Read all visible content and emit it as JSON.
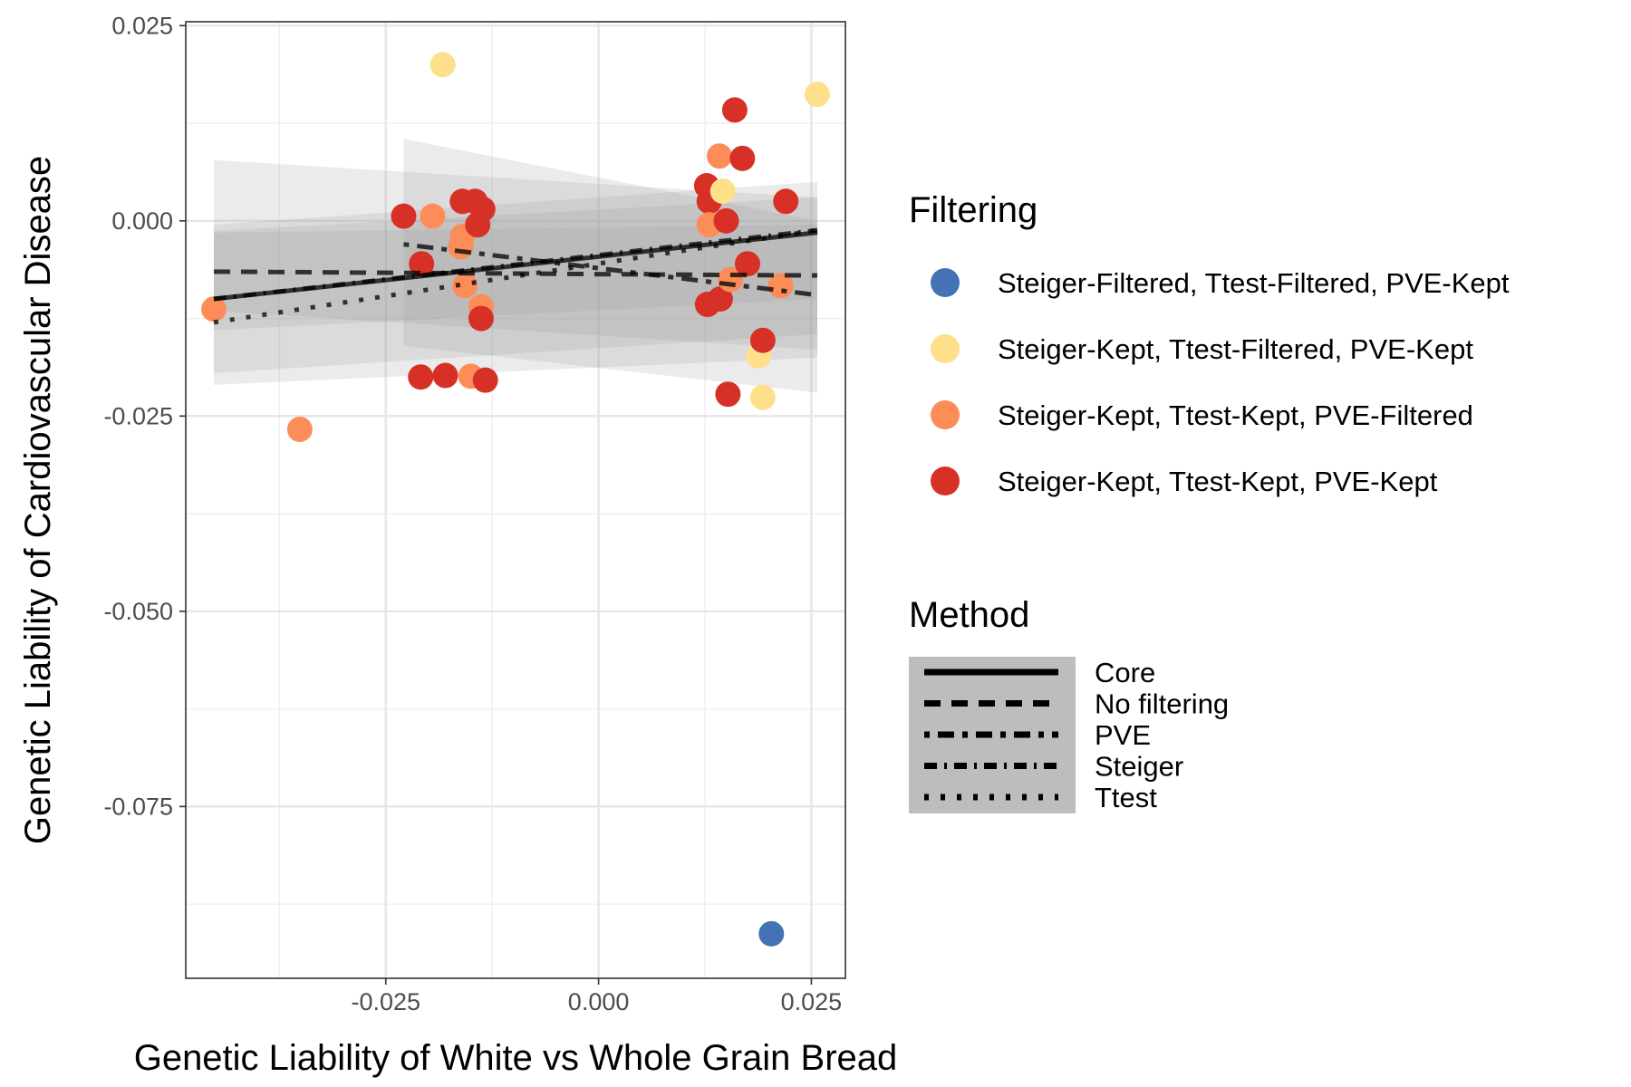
{
  "chart_data": {
    "type": "scatter",
    "xlabel": "Genetic Liability of White vs Whole Grain Bread",
    "ylabel": "Genetic Liability of Cardiovascular Disease",
    "xlim": [
      -0.0485,
      0.029
    ],
    "ylim": [
      -0.097,
      0.0255
    ],
    "x_ticks": [
      -0.025,
      0.0,
      0.025
    ],
    "x_tick_labels": [
      "-0.025",
      "0.000",
      "0.025"
    ],
    "y_ticks": [
      0.025,
      0.0,
      -0.025,
      -0.05,
      -0.075
    ],
    "y_tick_labels": [
      "0.025",
      "0.000",
      "-0.025",
      "-0.050",
      "-0.075"
    ],
    "grid": true,
    "legend_placement": "right",
    "filtering_legend": {
      "title": "Filtering",
      "entries": [
        {
          "label": "Steiger-Filtered, Ttest-Filtered, PVE-Kept",
          "color": "#4472B4"
        },
        {
          "label": "Steiger-Kept, Ttest-Filtered, PVE-Kept",
          "color": "#FEE08B"
        },
        {
          "label": "Steiger-Kept, Ttest-Kept, PVE-Filtered",
          "color": "#FC8D59"
        },
        {
          "label": "Steiger-Kept, Ttest-Kept, PVE-Kept",
          "color": "#D73027"
        }
      ]
    },
    "method_legend": {
      "title": "Method",
      "entries": [
        {
          "label": "Core",
          "dash": "none"
        },
        {
          "label": "No filtering",
          "dash": "18,12"
        },
        {
          "label": "PVE",
          "dash": "6,9,18,9"
        },
        {
          "label": "Steiger",
          "dash": "14,8,3,8"
        },
        {
          "label": "Ttest",
          "dash": "5,13"
        }
      ]
    },
    "points": [
      {
        "x": -0.0452,
        "y": -0.0113,
        "group": 2
      },
      {
        "x": -0.0351,
        "y": -0.0267,
        "group": 2
      },
      {
        "x": -0.0229,
        "y": 0.0006,
        "group": 3
      },
      {
        "x": -0.0208,
        "y": -0.0055,
        "group": 3
      },
      {
        "x": -0.0209,
        "y": -0.02,
        "group": 3
      },
      {
        "x": -0.0195,
        "y": 0.0006,
        "group": 2
      },
      {
        "x": -0.0183,
        "y": 0.02,
        "group": 1
      },
      {
        "x": -0.018,
        "y": -0.0198,
        "group": 3
      },
      {
        "x": -0.0162,
        "y": -0.0033,
        "group": 2
      },
      {
        "x": -0.016,
        "y": -0.002,
        "group": 2
      },
      {
        "x": -0.016,
        "y": 0.0025,
        "group": 3
      },
      {
        "x": -0.0157,
        "y": -0.0083,
        "group": 2
      },
      {
        "x": -0.015,
        "y": -0.0199,
        "group": 2
      },
      {
        "x": -0.0145,
        "y": 0.0025,
        "group": 3
      },
      {
        "x": -0.0142,
        "y": -0.0005,
        "group": 3
      },
      {
        "x": -0.0136,
        "y": 0.0015,
        "group": 3
      },
      {
        "x": -0.0138,
        "y": -0.011,
        "group": 2
      },
      {
        "x": -0.0138,
        "y": -0.0125,
        "group": 3
      },
      {
        "x": -0.0133,
        "y": -0.0204,
        "group": 3
      },
      {
        "x": 0.0127,
        "y": 0.0045,
        "group": 3
      },
      {
        "x": 0.0128,
        "y": -0.0107,
        "group": 3
      },
      {
        "x": 0.013,
        "y": 0.0025,
        "group": 3
      },
      {
        "x": 0.013,
        "y": -0.0005,
        "group": 2
      },
      {
        "x": 0.0142,
        "y": 0.0083,
        "group": 2
      },
      {
        "x": 0.0143,
        "y": -0.01,
        "group": 3
      },
      {
        "x": 0.0146,
        "y": 0.0038,
        "group": 1
      },
      {
        "x": 0.015,
        "y": 0.0,
        "group": 3
      },
      {
        "x": 0.0152,
        "y": -0.0222,
        "group": 3
      },
      {
        "x": 0.0155,
        "y": -0.0075,
        "group": 2
      },
      {
        "x": 0.016,
        "y": 0.0142,
        "group": 3
      },
      {
        "x": 0.0169,
        "y": 0.008,
        "group": 3
      },
      {
        "x": 0.0175,
        "y": -0.0055,
        "group": 3
      },
      {
        "x": 0.0188,
        "y": -0.0173,
        "group": 1
      },
      {
        "x": 0.0193,
        "y": -0.0153,
        "group": 3
      },
      {
        "x": 0.0193,
        "y": -0.0226,
        "group": 1
      },
      {
        "x": 0.0203,
        "y": -0.0913,
        "group": 0
      },
      {
        "x": 0.0214,
        "y": -0.0083,
        "group": 2
      },
      {
        "x": 0.022,
        "y": 0.0025,
        "group": 3
      },
      {
        "x": 0.0257,
        "y": 0.0162,
        "group": 1
      }
    ],
    "ribbons": [
      {
        "x": [
          -0.0452,
          0.0257
        ],
        "upper": [
          -0.0005,
          0.005
        ],
        "lower": [
          -0.014,
          -0.01
        ]
      },
      {
        "x": [
          -0.0452,
          0.0257
        ],
        "upper": [
          -0.0013,
          0.003
        ],
        "lower": [
          -0.0115,
          -0.0165
        ]
      },
      {
        "x": [
          -0.0452,
          0.0257
        ],
        "upper": [
          0.0078,
          0.003
        ],
        "lower": [
          -0.021,
          -0.0175
        ]
      },
      {
        "x": [
          -0.0229,
          0.0257
        ],
        "upper": [
          0.0105,
          0.0
        ],
        "lower": [
          -0.016,
          -0.022
        ]
      },
      {
        "x": [
          -0.0452,
          0.0257
        ],
        "upper": [
          -0.0015,
          -0.0005
        ],
        "lower": [
          -0.0195,
          -0.0145
        ]
      }
    ],
    "lines": [
      {
        "method": "Core",
        "x": [
          -0.0452,
          0.0257
        ],
        "y": [
          -0.01,
          -0.0015
        ]
      },
      {
        "method": "No filtering",
        "x": [
          -0.0452,
          0.0257
        ],
        "y": [
          -0.0065,
          -0.007
        ]
      },
      {
        "method": "PVE",
        "x": [
          -0.0229,
          0.0257
        ],
        "y": [
          -0.003,
          -0.0095
        ]
      },
      {
        "method": "Steiger",
        "x": [
          -0.0452,
          0.0257
        ],
        "y": [
          -0.01,
          -0.0012
        ]
      },
      {
        "method": "Ttest",
        "x": [
          -0.0452,
          0.0257
        ],
        "y": [
          -0.013,
          -0.0012
        ]
      }
    ]
  }
}
